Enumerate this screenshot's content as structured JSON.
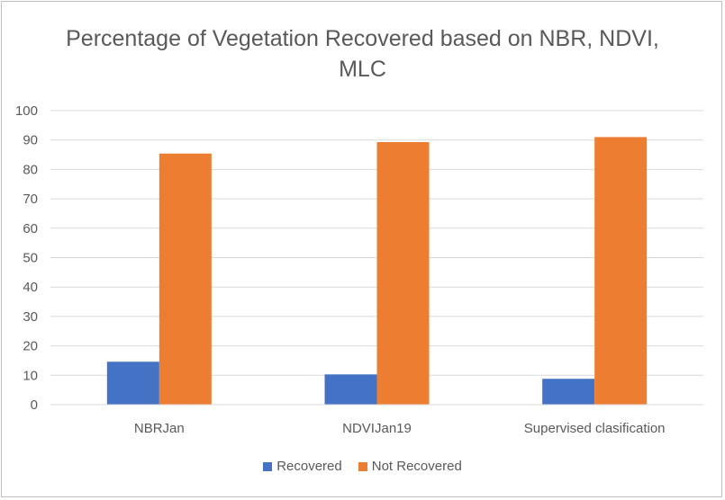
{
  "chart_data": {
    "type": "bar",
    "title": "Percentage of Vegetation Recovered based on NBR, NDVI, MLC",
    "categories": [
      "NBRJan",
      "NDVIJan19",
      "Supervised clasification"
    ],
    "series": [
      {
        "name": "Recovered",
        "color": "#4472c4",
        "values": [
          14.6,
          10.3,
          8.8
        ]
      },
      {
        "name": "Not Recovered",
        "color": "#ed7d31",
        "values": [
          85.4,
          89.3,
          91.0
        ]
      }
    ],
    "ylim": [
      0,
      100
    ],
    "yticks": [
      0,
      10,
      20,
      30,
      40,
      50,
      60,
      70,
      80,
      90,
      100
    ],
    "grid": true,
    "legend_position": "bottom"
  }
}
